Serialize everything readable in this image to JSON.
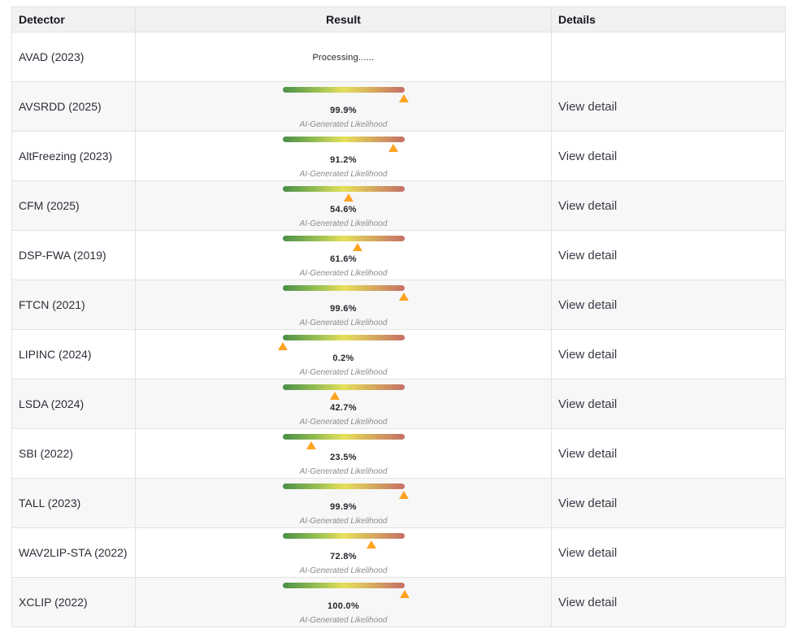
{
  "table": {
    "headers": {
      "detector": "Detector",
      "result": "Result",
      "details": "Details"
    },
    "labels": {
      "processing": "Processing......",
      "result_caption": "AI-Generated Likelihood",
      "view_detail": "View detail"
    },
    "colors": {
      "marker": "#ffa321",
      "bar_green": "#4a8f4a",
      "bar_yellow": "#e5e05c",
      "bar_red": "#c66f68",
      "header_bg": "#f1f1f1",
      "stripe_bg": "#f7f7f7",
      "border": "#e2e2e2"
    },
    "rows": [
      {
        "detector": "AVAD (2023)",
        "status": "processing",
        "likelihood_pct": null,
        "value_label": "",
        "has_detail": false
      },
      {
        "detector": "AVSRDD (2025)",
        "status": "done",
        "likelihood_pct": 99.9,
        "value_label": "99.9%",
        "has_detail": true
      },
      {
        "detector": "AltFreezing (2023)",
        "status": "done",
        "likelihood_pct": 91.2,
        "value_label": "91.2%",
        "has_detail": true
      },
      {
        "detector": "CFM (2025)",
        "status": "done",
        "likelihood_pct": 54.6,
        "value_label": "54.6%",
        "has_detail": true
      },
      {
        "detector": "DSP-FWA (2019)",
        "status": "done",
        "likelihood_pct": 61.6,
        "value_label": "61.6%",
        "has_detail": true
      },
      {
        "detector": "FTCN (2021)",
        "status": "done",
        "likelihood_pct": 99.6,
        "value_label": "99.6%",
        "has_detail": true
      },
      {
        "detector": "LIPINC (2024)",
        "status": "done",
        "likelihood_pct": 0.2,
        "value_label": "0.2%",
        "has_detail": true
      },
      {
        "detector": "LSDA (2024)",
        "status": "done",
        "likelihood_pct": 42.7,
        "value_label": "42.7%",
        "has_detail": true
      },
      {
        "detector": "SBI (2022)",
        "status": "done",
        "likelihood_pct": 23.5,
        "value_label": "23.5%",
        "has_detail": true
      },
      {
        "detector": "TALL (2023)",
        "status": "done",
        "likelihood_pct": 99.9,
        "value_label": "99.9%",
        "has_detail": true
      },
      {
        "detector": "WAV2LIP-STA (2022)",
        "status": "done",
        "likelihood_pct": 72.8,
        "value_label": "72.8%",
        "has_detail": true
      },
      {
        "detector": "XCLIP (2022)",
        "status": "done",
        "likelihood_pct": 100.0,
        "value_label": "100.0%",
        "has_detail": true
      }
    ]
  }
}
